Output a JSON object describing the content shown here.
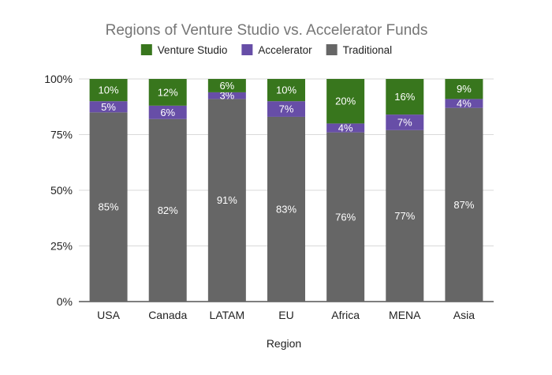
{
  "chart_data": {
    "type": "bar",
    "stacked": true,
    "title": "Regions of Venture Studio vs. Accelerator Funds",
    "xlabel": "Region",
    "ylabel": "",
    "ylim": [
      0,
      100
    ],
    "yticks": [
      "0%",
      "25%",
      "50%",
      "75%",
      "100%"
    ],
    "categories": [
      "USA",
      "Canada",
      "LATAM",
      "EU",
      "Africa",
      "MENA",
      "Asia"
    ],
    "series": [
      {
        "name": "Traditional",
        "color": "#666666",
        "values": [
          85,
          82,
          91,
          83,
          76,
          77,
          87
        ],
        "labels": [
          "85%",
          "82%",
          "91%",
          "83%",
          "76%",
          "77%",
          "87%"
        ]
      },
      {
        "name": "Accelerator",
        "color": "#674ea7",
        "values": [
          5,
          6,
          3,
          7,
          4,
          7,
          4
        ],
        "labels": [
          "5%",
          "6%",
          "3%",
          "7%",
          "4%",
          "7%",
          "4%"
        ]
      },
      {
        "name": "Venture Studio",
        "color": "#38761d",
        "values": [
          10,
          12,
          6,
          10,
          20,
          16,
          9
        ],
        "labels": [
          "10%",
          "12%",
          "6%",
          "10%",
          "20%",
          "16%",
          "9%"
        ]
      }
    ],
    "legend": {
      "position": "top",
      "order": [
        "Venture Studio",
        "Accelerator",
        "Traditional"
      ]
    },
    "grid": true
  }
}
